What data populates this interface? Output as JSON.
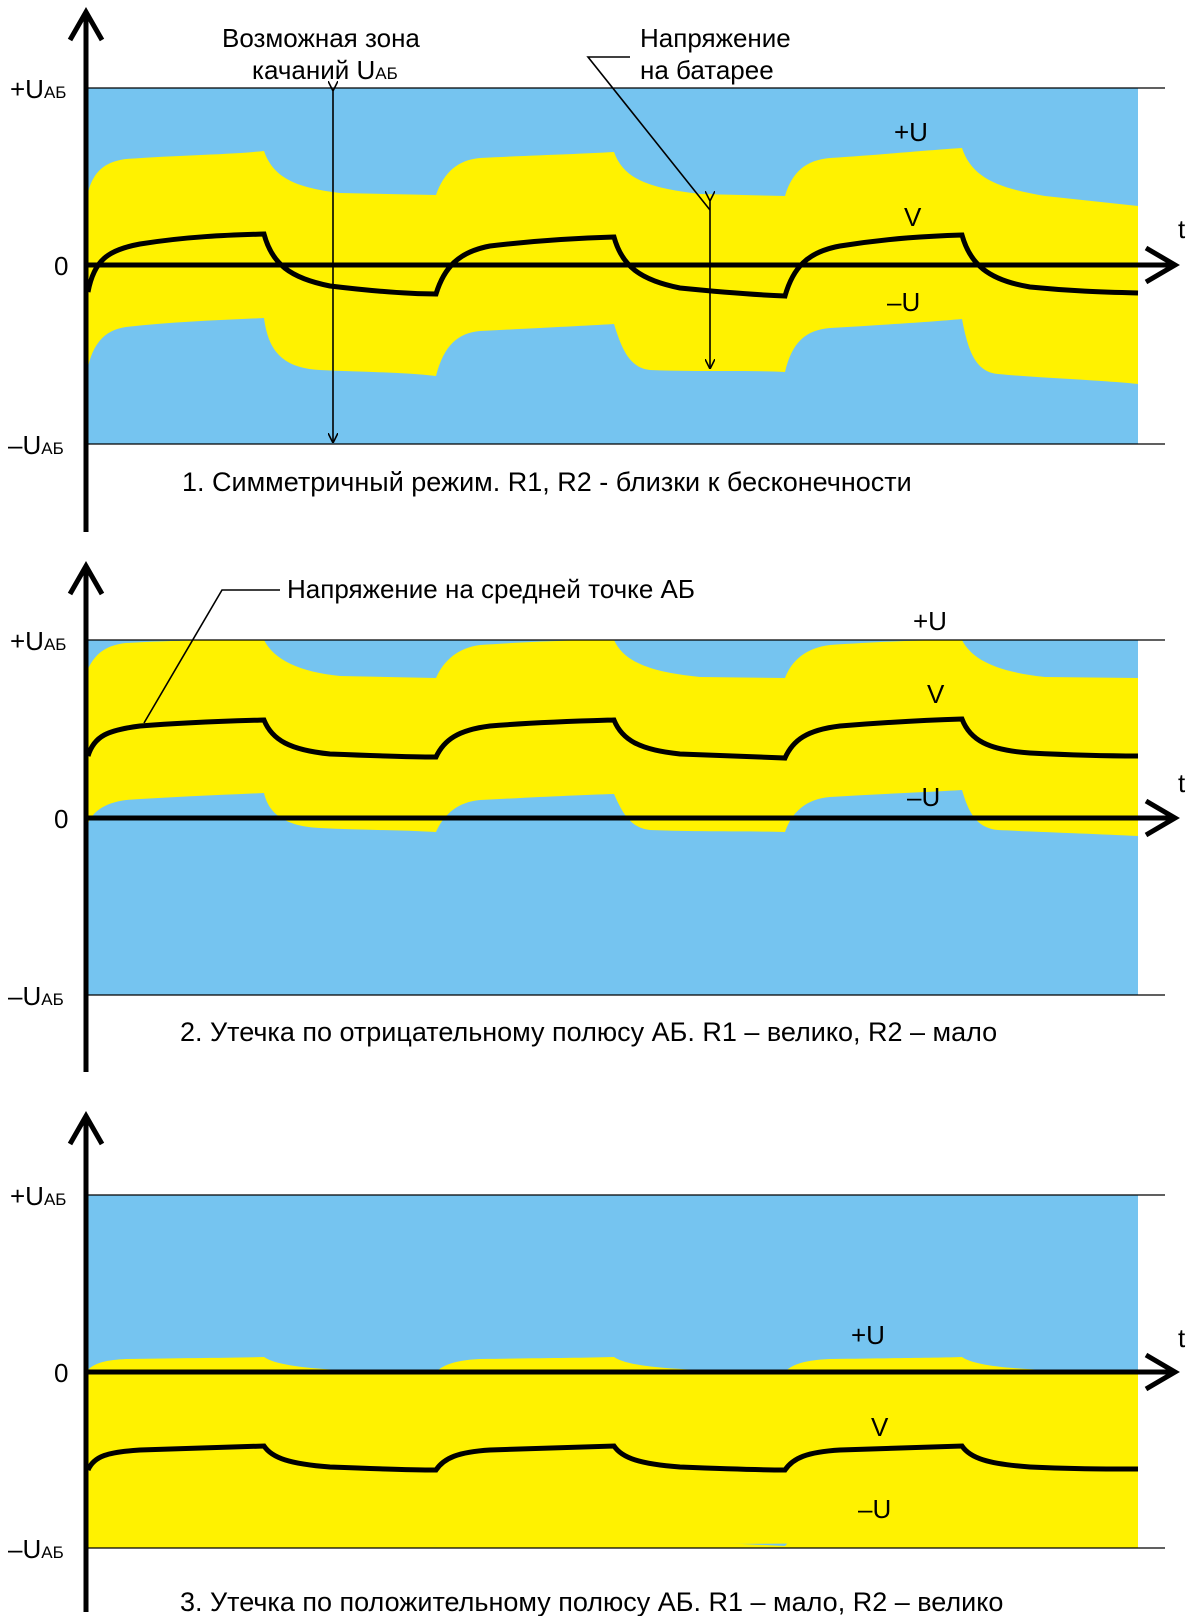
{
  "colors": {
    "zone": "#75c4f0",
    "band": "#fff200",
    "ink": "#000000"
  },
  "axis_labels": {
    "t": "t",
    "zero": "0",
    "plus_prefix": "+U",
    "minus_prefix": "–U",
    "sub": "АБ"
  },
  "curve_labels": {
    "plus": "+U",
    "v": "V",
    "minus": "–U"
  },
  "annotations": {
    "zone_line1": "Возможная зона",
    "zone_line2": "качаний U",
    "zone_sub": "АБ",
    "battery_line1": "Напряжение",
    "battery_line2": "на батарее",
    "midpoint": "Напряжение на средней точке АБ"
  },
  "panels": [
    {
      "caption": "1. Симметричный режим. R1, R2 - близки к бесконечности",
      "v_center": 0.0
    },
    {
      "caption": "2. Утечка по отрицательному полюсу АБ. R1 – велико, R2 – мало",
      "v_center": 0.5
    },
    {
      "caption": "3. Утечка по положительному полюсу АБ. R1 – мало, R2 – велико",
      "v_center": -0.5
    }
  ]
}
